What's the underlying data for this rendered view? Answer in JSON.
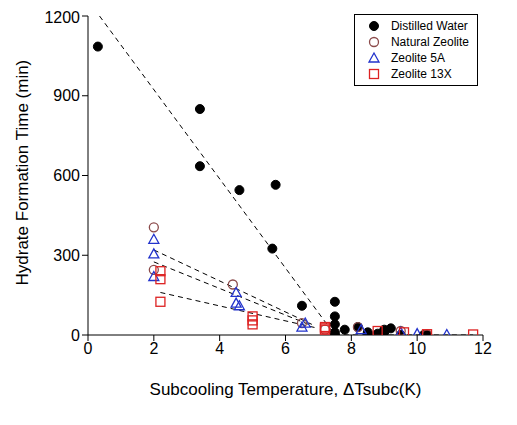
{
  "chart_data": {
    "type": "scatter",
    "x_label": "Subcooling Temperature, ΔTsubc(K)",
    "y_label": "Hydrate Formation Time (min)",
    "xlim": [
      0,
      12
    ],
    "xticks": [
      0,
      2,
      4,
      6,
      8,
      10,
      12
    ],
    "ylim": [
      0,
      1200
    ],
    "yticks": [
      0,
      300,
      600,
      900,
      1200
    ],
    "legend": "upper right",
    "grid": false,
    "series": [
      {
        "name": "Distilled Water",
        "color": "#000000",
        "marker": "circle",
        "x": [
          0.3,
          3.4,
          3.4,
          4.6,
          5.7,
          5.6,
          6.5,
          7.5,
          7.5,
          7.5,
          7.5,
          7.5,
          7.8,
          8.2,
          8.5,
          8.5,
          8.8,
          9.0,
          9.2,
          9.5,
          10.2,
          10.3,
          9.0
        ],
        "values": [
          1085,
          850,
          635,
          545,
          565,
          325,
          110,
          125,
          70,
          40,
          10,
          0,
          20,
          30,
          10,
          0,
          5,
          20,
          25,
          0,
          0,
          0,
          10
        ]
      },
      {
        "name": "Natural Zeolite",
        "color": "#8b4a4a",
        "marker": "circle_open",
        "x": [
          2.0,
          2.0,
          4.4,
          6.5,
          7.2,
          8.2,
          9.5,
          10.3
        ],
        "values": [
          405,
          245,
          190,
          45,
          20,
          30,
          15,
          2
        ]
      },
      {
        "name": "Zeolite 5A",
        "color": "#2233cc",
        "marker": "triangle_open",
        "x": [
          2.0,
          2.0,
          2.0,
          4.5,
          4.5,
          4.6,
          6.5,
          6.6,
          8.3,
          9.5,
          10.0,
          10.9
        ],
        "values": [
          360,
          305,
          220,
          160,
          120,
          110,
          30,
          45,
          20,
          10,
          5,
          2
        ]
      },
      {
        "name": "Zeolite 13X",
        "color": "#dd2222",
        "marker": "square_open",
        "x": [
          2.2,
          2.2,
          2.2,
          5.0,
          5.0,
          5.0,
          7.2,
          7.2,
          7.2,
          8.8,
          9.6,
          10.3,
          11.7
        ],
        "values": [
          240,
          210,
          125,
          70,
          55,
          40,
          20,
          30,
          25,
          15,
          10,
          3,
          2
        ]
      }
    ],
    "trend_lines": [
      {
        "color": "#000000",
        "line_style": "dashed",
        "x": [
          0.35,
          7.5
        ],
        "values": [
          1200,
          0
        ]
      },
      {
        "color": "#000000",
        "line_style": "dashed",
        "x": [
          2.0,
          6.8
        ],
        "values": [
          320,
          40
        ]
      },
      {
        "color": "#000000",
        "line_style": "dashed",
        "x": [
          2.0,
          6.8
        ],
        "values": [
          275,
          35
        ]
      },
      {
        "color": "#000000",
        "line_style": "dashed",
        "x": [
          2.2,
          7.0
        ],
        "values": [
          160,
          25
        ]
      },
      {
        "color": "#000000",
        "line_style": "dashed",
        "x": [
          7.5,
          11.7
        ],
        "values": [
          0,
          0
        ]
      }
    ]
  }
}
